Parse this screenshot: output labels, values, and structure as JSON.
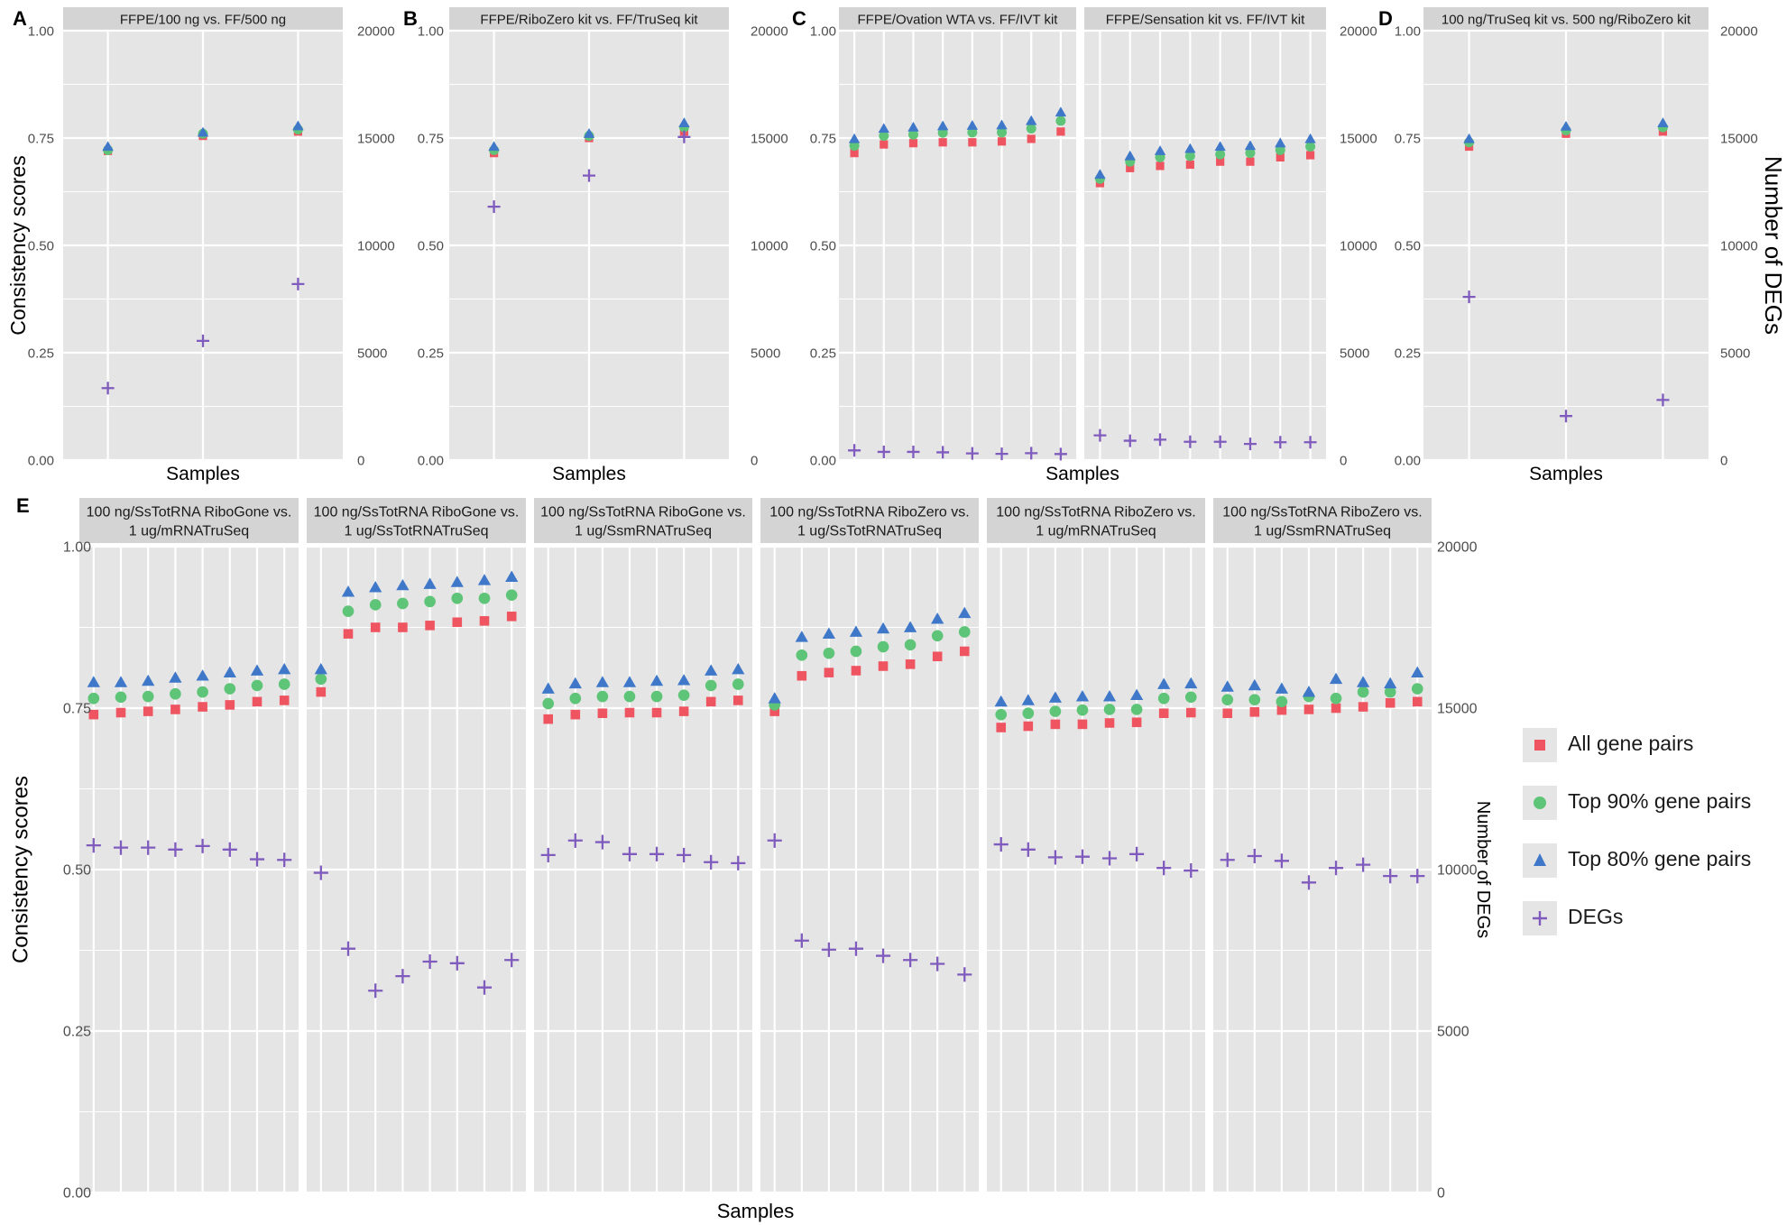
{
  "chart_data": [
    {
      "type": "scatter",
      "panel_label": "A",
      "facets": [
        {
          "title": [
            "FFPE/100 ng vs. FF/500 ng"
          ],
          "series": [
            {
              "name": "All gene pairs",
              "values": [
                0.72,
                0.755,
                0.765
              ]
            },
            {
              "name": "Top 90% gene pairs",
              "values": [
                0.722,
                0.76,
                0.77
              ]
            },
            {
              "name": "Top 80% gene pairs",
              "values": [
                0.73,
                0.763,
                0.778
              ]
            },
            {
              "name": "DEGs",
              "values": [
                3350,
                5550,
                8200
              ]
            }
          ]
        }
      ],
      "xlabel": "Samples",
      "ylabel": "Consistency scores",
      "y2label": "",
      "ylim": [
        0,
        1
      ],
      "y2lim": [
        0,
        20000
      ],
      "y_ticks": [
        "0.00",
        "0.25",
        "0.50",
        "0.75",
        "1.00"
      ],
      "y2_ticks": [
        "0",
        "5000",
        "10000",
        "15000",
        "20000"
      ]
    },
    {
      "type": "scatter",
      "panel_label": "B",
      "facets": [
        {
          "title": [
            "FFPE/RiboZero kit vs. FF/TruSeq kit"
          ],
          "series": [
            {
              "name": "All gene pairs",
              "values": [
                0.715,
                0.75,
                0.765
              ]
            },
            {
              "name": "Top 90% gene pairs",
              "values": [
                0.722,
                0.755,
                0.775
              ]
            },
            {
              "name": "Top 80% gene pairs",
              "values": [
                0.73,
                0.76,
                0.785
              ]
            },
            {
              "name": "DEGs",
              "values": [
                11800,
                13250,
                15050
              ]
            }
          ]
        }
      ],
      "xlabel": "Samples",
      "ylabel": "",
      "y2label": "",
      "ylim": [
        0,
        1
      ],
      "y2lim": [
        0,
        20000
      ],
      "y_ticks": [
        "0.00",
        "0.25",
        "0.50",
        "0.75",
        "1.00"
      ],
      "y2_ticks": [
        "0",
        "5000",
        "10000",
        "15000",
        "20000"
      ]
    },
    {
      "type": "scatter",
      "panel_label": "C",
      "facets": [
        {
          "title": [
            "FFPE/Ovation WTA vs. FF/IVT kit"
          ],
          "series": [
            {
              "name": "All gene pairs",
              "values": [
                0.715,
                0.735,
                0.738,
                0.74,
                0.74,
                0.742,
                0.748,
                0.765
              ]
            },
            {
              "name": "Top 90% gene pairs",
              "values": [
                0.732,
                0.755,
                0.758,
                0.762,
                0.763,
                0.763,
                0.772,
                0.79
              ]
            },
            {
              "name": "Top 80% gene pairs",
              "values": [
                0.748,
                0.772,
                0.775,
                0.778,
                0.779,
                0.78,
                0.79,
                0.81
              ]
            },
            {
              "name": "DEGs",
              "values": [
                450,
                380,
                380,
                360,
                310,
                290,
                320,
                280
              ]
            }
          ]
        },
        {
          "title": [
            "FFPE/Sensation kit vs. FF/IVT kit"
          ],
          "series": [
            {
              "name": "All gene pairs",
              "values": [
                0.645,
                0.68,
                0.685,
                0.688,
                0.695,
                0.695,
                0.705,
                0.71
              ]
            },
            {
              "name": "Top 90% gene pairs",
              "values": [
                0.655,
                0.695,
                0.705,
                0.708,
                0.712,
                0.715,
                0.722,
                0.73
              ]
            },
            {
              "name": "Top 80% gene pairs",
              "values": [
                0.665,
                0.708,
                0.72,
                0.725,
                0.73,
                0.732,
                0.738,
                0.748
              ]
            },
            {
              "name": "DEGs",
              "values": [
                1150,
                900,
                950,
                850,
                850,
                750,
                830,
                830
              ]
            }
          ]
        }
      ],
      "xlabel": "Samples",
      "ylabel": "",
      "y2label": "",
      "ylim": [
        0,
        1
      ],
      "y2lim": [
        0,
        20000
      ],
      "y_ticks": [
        "0.00",
        "0.25",
        "0.50",
        "0.75",
        "1.00"
      ],
      "y2_ticks": [
        "0",
        "5000",
        "10000",
        "15000",
        "20000"
      ]
    },
    {
      "type": "scatter",
      "panel_label": "D",
      "facets": [
        {
          "title": [
            "100 ng/TruSeq kit vs. 500 ng/RiboZero kit"
          ],
          "series": [
            {
              "name": "All gene pairs",
              "values": [
                0.73,
                0.76,
                0.765
              ]
            },
            {
              "name": "Top 90% gene pairs",
              "values": [
                0.74,
                0.768,
                0.775
              ]
            },
            {
              "name": "Top 80% gene pairs",
              "values": [
                0.748,
                0.777,
                0.785
              ]
            },
            {
              "name": "DEGs",
              "values": [
                7600,
                2050,
                2800
              ]
            }
          ]
        }
      ],
      "xlabel": "Samples",
      "ylabel": "",
      "y2label": "Number of DEGs",
      "ylim": [
        0,
        1
      ],
      "y2lim": [
        0,
        20000
      ],
      "y_ticks": [
        "0.00",
        "0.25",
        "0.50",
        "0.75",
        "1.00"
      ],
      "y2_ticks": [
        "0",
        "5000",
        "10000",
        "15000",
        "20000"
      ]
    },
    {
      "type": "scatter",
      "panel_label": "E",
      "facets": [
        {
          "title": [
            "100 ng/SsTotRNA RiboGone vs.",
            "1 ug/mRNATruSeq"
          ],
          "series": [
            {
              "name": "All gene pairs",
              "values": [
                0.74,
                0.743,
                0.745,
                0.748,
                0.752,
                0.755,
                0.76,
                0.762
              ]
            },
            {
              "name": "Top 90% gene pairs",
              "values": [
                0.765,
                0.767,
                0.768,
                0.772,
                0.775,
                0.78,
                0.785,
                0.787
              ]
            },
            {
              "name": "Top 80% gene pairs",
              "values": [
                0.79,
                0.79,
                0.792,
                0.797,
                0.8,
                0.805,
                0.808,
                0.81
              ]
            },
            {
              "name": "DEGs",
              "values": [
                10750,
                10680,
                10680,
                10620,
                10730,
                10620,
                10320,
                10300
              ]
            }
          ]
        },
        {
          "title": [
            "100 ng/SsTotRNA RiboGone vs.",
            "1 ug/SsTotRNATruSeq"
          ],
          "series": [
            {
              "name": "All gene pairs",
              "values": [
                0.775,
                0.865,
                0.875,
                0.875,
                0.878,
                0.883,
                0.885,
                0.892
              ]
            },
            {
              "name": "Top 90% gene pairs",
              "values": [
                0.795,
                0.9,
                0.91,
                0.912,
                0.915,
                0.92,
                0.92,
                0.925
              ]
            },
            {
              "name": "Top 80% gene pairs",
              "values": [
                0.81,
                0.93,
                0.937,
                0.94,
                0.942,
                0.945,
                0.948,
                0.953
              ]
            },
            {
              "name": "DEGs",
              "values": [
                9900,
                7550,
                6250,
                6700,
                7150,
                7100,
                6350,
                7200
              ]
            }
          ]
        },
        {
          "title": [
            "100 ng/SsTotRNA RiboGone vs.",
            "1 ug/SsmRNATruSeq"
          ],
          "series": [
            {
              "name": "All gene pairs",
              "values": [
                0.733,
                0.74,
                0.742,
                0.743,
                0.743,
                0.745,
                0.76,
                0.762
              ]
            },
            {
              "name": "Top 90% gene pairs",
              "values": [
                0.757,
                0.765,
                0.768,
                0.768,
                0.768,
                0.77,
                0.785,
                0.787
              ]
            },
            {
              "name": "Top 80% gene pairs",
              "values": [
                0.78,
                0.788,
                0.79,
                0.79,
                0.792,
                0.793,
                0.808,
                0.81
              ]
            },
            {
              "name": "DEGs",
              "values": [
                10450,
                10900,
                10850,
                10480,
                10480,
                10450,
                10230,
                10200
              ]
            }
          ]
        },
        {
          "title": [
            "100 ng/SsTotRNA RiboZero vs.",
            "1 ug/SsTotRNATruSeq"
          ],
          "series": [
            {
              "name": "All gene pairs",
              "values": [
                0.745,
                0.8,
                0.805,
                0.808,
                0.815,
                0.818,
                0.83,
                0.838
              ]
            },
            {
              "name": "Top 90% gene pairs",
              "values": [
                0.755,
                0.832,
                0.835,
                0.838,
                0.845,
                0.848,
                0.862,
                0.868
              ]
            },
            {
              "name": "Top 80% gene pairs",
              "values": [
                0.765,
                0.86,
                0.865,
                0.868,
                0.873,
                0.875,
                0.888,
                0.897
              ]
            },
            {
              "name": "DEGs",
              "values": [
                10900,
                7800,
                7520,
                7550,
                7330,
                7200,
                7080,
                6750
              ]
            }
          ]
        },
        {
          "title": [
            "100 ng/SsTotRNA RiboZero vs.",
            "1 ug/mRNATruSeq"
          ],
          "series": [
            {
              "name": "All gene pairs",
              "values": [
                0.72,
                0.722,
                0.725,
                0.725,
                0.727,
                0.728,
                0.742,
                0.743
              ]
            },
            {
              "name": "Top 90% gene pairs",
              "values": [
                0.74,
                0.742,
                0.745,
                0.747,
                0.748,
                0.748,
                0.765,
                0.767
              ]
            },
            {
              "name": "Top 80% gene pairs",
              "values": [
                0.76,
                0.762,
                0.766,
                0.768,
                0.768,
                0.77,
                0.787,
                0.788
              ]
            },
            {
              "name": "DEGs",
              "values": [
                10780,
                10620,
                10380,
                10400,
                10350,
                10480,
                10050,
                9970
              ]
            }
          ]
        },
        {
          "title": [
            "100 ng/SsTotRNA RiboZero vs.",
            "1 ug/SsmRNATruSeq"
          ],
          "series": [
            {
              "name": "All gene pairs",
              "values": [
                0.742,
                0.744,
                0.747,
                0.748,
                0.75,
                0.752,
                0.758,
                0.76
              ]
            },
            {
              "name": "Top 90% gene pairs",
              "values": [
                0.763,
                0.763,
                0.76,
                0.768,
                0.765,
                0.775,
                0.775,
                0.78
              ]
            },
            {
              "name": "Top 80% gene pairs",
              "values": [
                0.783,
                0.785,
                0.78,
                0.775,
                0.795,
                0.79,
                0.788,
                0.805
              ]
            },
            {
              "name": "DEGs",
              "values": [
                10300,
                10420,
                10270,
                9600,
                10050,
                10150,
                9800,
                9800
              ]
            }
          ]
        }
      ],
      "xlabel": "Samples",
      "ylabel": "Consistency scores",
      "y2label": "Number of DEGs",
      "ylim": [
        0,
        1
      ],
      "y2lim": [
        0,
        20000
      ],
      "y_ticks": [
        "0.00",
        "0.25",
        "0.50",
        "0.75",
        "1.00"
      ],
      "y2_ticks": [
        "0",
        "5000",
        "10000",
        "15000",
        "20000"
      ]
    }
  ],
  "legend": {
    "placement": "right",
    "items": [
      {
        "label": "All gene pairs",
        "shape": "square",
        "color": "#ee5560"
      },
      {
        "label": "Top 90% gene pairs",
        "shape": "circle",
        "color": "#5ec477"
      },
      {
        "label": "Top 80% gene pairs",
        "shape": "triangle",
        "color": "#3f78c9"
      },
      {
        "label": "DEGs",
        "shape": "plus",
        "color": "#7f5bbd"
      }
    ]
  },
  "colors": {
    "panel_background": "#e5e5e5",
    "strip_background": "#d4d4d4",
    "grid": "#ffffff"
  }
}
